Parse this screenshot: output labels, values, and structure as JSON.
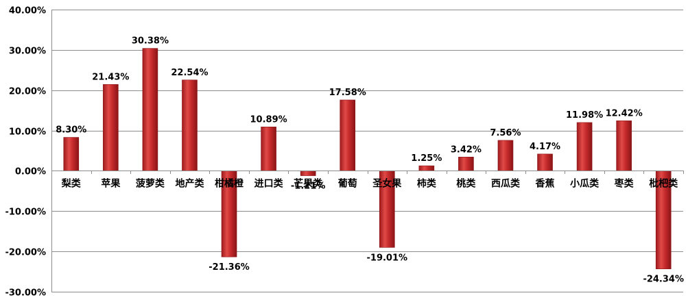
{
  "chart_data": {
    "type": "bar",
    "title": "",
    "xlabel": "",
    "ylabel": "",
    "categories": [
      "梨类",
      "苹果",
      "菠萝类",
      "地产类",
      "柑橘橙",
      "进口类",
      "芒果类",
      "葡萄",
      "圣女果",
      "柿类",
      "桃类",
      "西瓜类",
      "香蕉",
      "小瓜类",
      "枣类",
      "枇杷类"
    ],
    "values": [
      8.3,
      21.43,
      30.38,
      22.54,
      -21.36,
      10.89,
      -1.21,
      17.58,
      -19.01,
      1.25,
      3.42,
      7.56,
      4.17,
      11.98,
      12.42,
      -24.34
    ],
    "value_labels": [
      "8.30%",
      "21.43%",
      "30.38%",
      "22.54%",
      "-21.36%",
      "10.89%",
      "-1.21%",
      "17.58%",
      "-19.01%",
      "1.25%",
      "3.42%",
      "7.56%",
      "4.17%",
      "11.98%",
      "12.42%",
      "-24.34%"
    ],
    "ylim": [
      -30,
      40
    ],
    "yticks": [
      40,
      30,
      20,
      10,
      0,
      -10,
      -20,
      -30
    ],
    "ytick_labels": [
      "40.00%",
      "30.00%",
      "20.00%",
      "10.00%",
      "0.00%",
      "-10.00%",
      "-20.00%",
      "-30.00%"
    ],
    "grid": true,
    "legend": "none",
    "bar_color": "#c0262a",
    "bar_highlight": "#e8524f",
    "bar_shadow": "#8a1416"
  }
}
